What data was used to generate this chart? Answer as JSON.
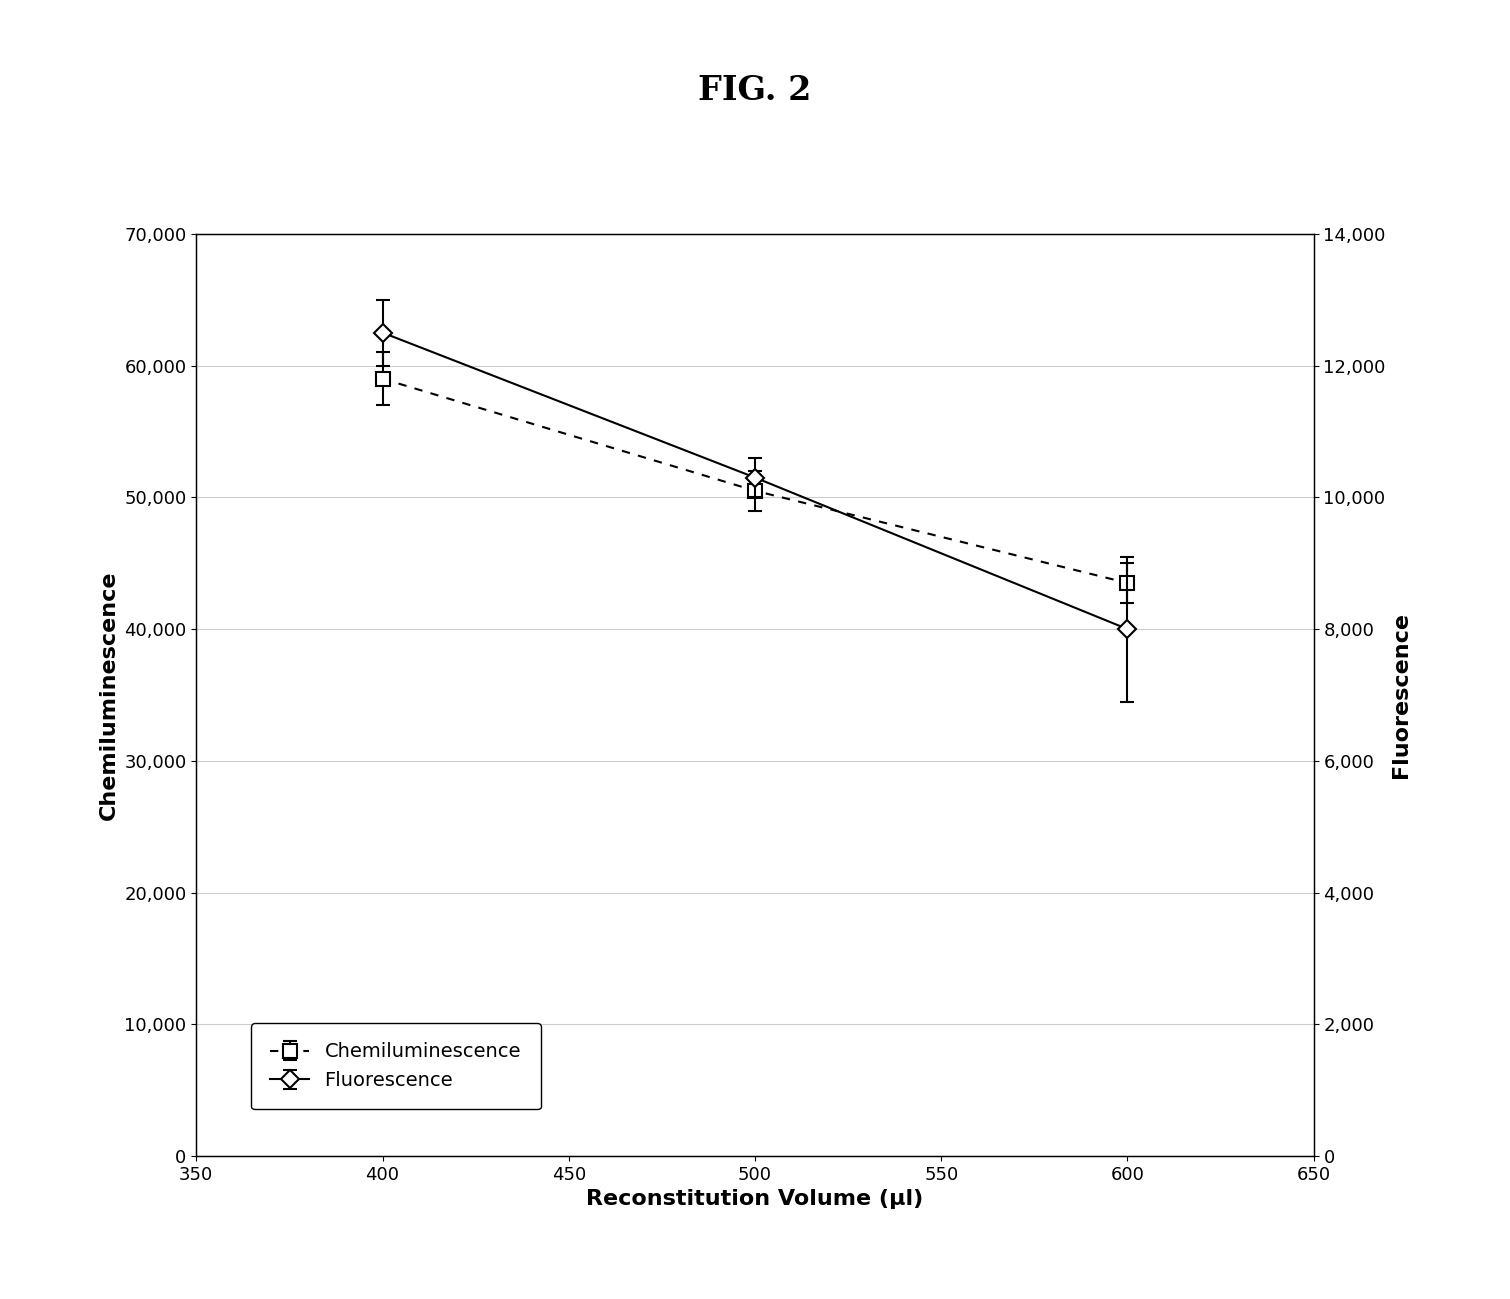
{
  "title": "FIG. 2",
  "xlabel": "Reconstitution Volume (μl)",
  "ylabel_left": "Chemiluminescence",
  "ylabel_right": "Fluorescence",
  "x": [
    400,
    500,
    600
  ],
  "chemiluminescence": [
    59000,
    50500,
    43500
  ],
  "chemiluminescence_yerr": [
    2000,
    1500,
    1500
  ],
  "fluorescence": [
    12500,
    10300,
    8000
  ],
  "fluorescence_yerr": [
    500,
    300,
    1100
  ],
  "xlim": [
    350,
    650
  ],
  "ylim_left": [
    0,
    70000
  ],
  "ylim_right": [
    0,
    14000
  ],
  "yticks_left": [
    0,
    10000,
    20000,
    30000,
    40000,
    50000,
    60000,
    70000
  ],
  "ytick_labels_left": [
    "0",
    "10,000",
    "20,000",
    "30,000",
    "40,000",
    "50,000",
    "60,000",
    "70,000"
  ],
  "yticks_right": [
    0,
    2000,
    4000,
    6000,
    8000,
    10000,
    12000,
    14000
  ],
  "ytick_labels_right": [
    "0",
    "2,000",
    "4,000",
    "6,000",
    "8,000",
    "10,000",
    "12,000",
    "14,000"
  ],
  "xticks": [
    350,
    400,
    450,
    500,
    550,
    600,
    650
  ],
  "xtick_labels": [
    "350",
    "400",
    "450",
    "500",
    "550",
    "600",
    "650"
  ],
  "background_color": "white",
  "title_fontsize": 24,
  "axis_label_fontsize": 16,
  "tick_fontsize": 13,
  "legend_fontsize": 14
}
